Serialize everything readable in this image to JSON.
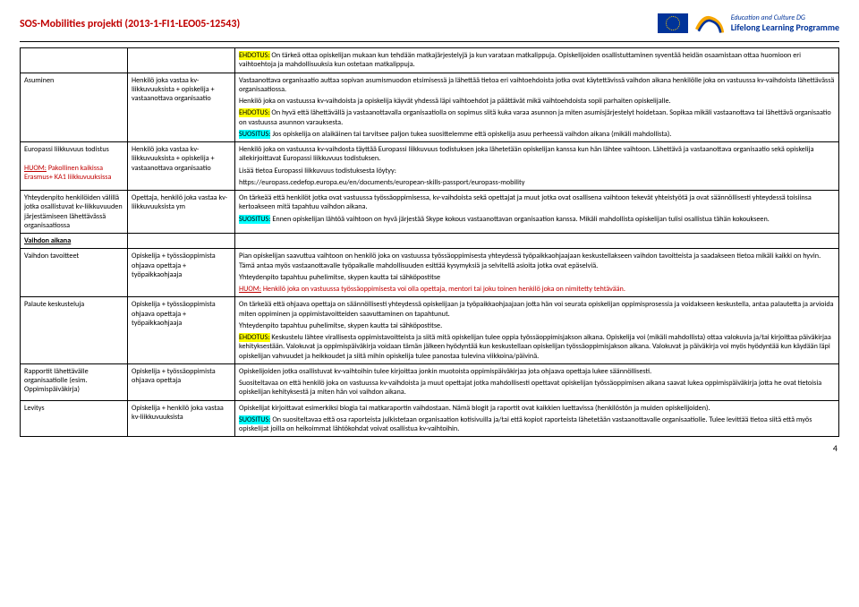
{
  "header": {
    "title": "SOS-Mobilities projekti (2013-1-FI1-LEO05-12543)",
    "programme_line1": "Education and Culture DG",
    "programme_line2": "Lifelong Learning Programme"
  },
  "footer": {
    "page": "4"
  },
  "rows": [
    {
      "col1": "",
      "col2": "",
      "col3": [
        {
          "t": "span",
          "cls": "hl-yellow",
          "text": "EHDOTUS:"
        },
        {
          "t": "text",
          "text": " On tärkeä ottaa opiskelijan mukaan kun tehdään matkajärjestelyjä ja kun varataan matkalippuja. Opiskelijoiden osallistuttaminen syventää heidän osaamistaan ottaa huomioon eri vaihtoehtoja ja mahdollisuuksia kun ostetaan matkalippuja."
        }
      ]
    },
    {
      "col1": "Asuminen",
      "col2": "Henkilö joka vastaa kv-liikkuvuuksista + opiskelija + vastaanottava organisaatio",
      "col3": [
        {
          "t": "p",
          "text": "Vastaanottava organisaatio auttaa sopivan asumismuodon etsimisessä ja lähettää tietoa eri vaihtoehdoista jotka ovat käytettävissä vaihdon aikana henkilölle joka on vastuussa kv-vaihdoista lähettävässä organisaatiossa."
        },
        {
          "t": "p",
          "text": "Henkilö joka on vastuussa kv-vaihdoista ja opiskelija käyvät yhdessä läpi vaihtoehdot ja päättävät mikä vaihtoehdoista sopii parhaiten opiskelijalle."
        },
        {
          "t": "p",
          "children": [
            {
              "t": "span",
              "cls": "hl-yellow",
              "text": "EHDOTUS:"
            },
            {
              "t": "text",
              "text": " On hyvä että lähettävällä ja vastaanottavalla organisaatiolla on sopimus siitä kuka varaa asunnon ja miten asumisjärjestelyt hoidetaan. Sopikaa mikäli vastaanottava tai lähettävä organisaatio on vastuussa asunnon varauksesta."
            }
          ]
        },
        {
          "t": "p",
          "children": [
            {
              "t": "span",
              "cls": "hl-cyan",
              "text": "SUOSITUS:"
            },
            {
              "t": "text",
              "text": " Jos opiskelija on alaikäinen tai tarvitsee paljon tukea suosittelemme että opiskelija asuu perheessä vaihdon aikana (mikäli mahdollista)."
            }
          ]
        }
      ]
    },
    {
      "col1_html": "Europassi liikkuvuus todistus<br><br><span class='red u'>HUOM:</span><span class='red'> Pakollinen kaikissa Erasmus+ KA1 liikkuvuuksissa</span>",
      "col2": "Henkilö joka vastaa kv-liikkuvuuksista + opiskelija + vastaanottava organisaatio",
      "col3": [
        {
          "t": "p",
          "text": "Henkilö joka on vastuussa kv-vaihdosta täyttää Europassi liikkuvuus todistuksen joka lähetetään opiskelijan kanssa kun hän lähtee vaihtoon. Lähettävä ja vastaanottava organisaatio sekä opiskelija allekirjoittavat Europassi liikkuvuus todistuksen."
        },
        {
          "t": "p",
          "text": "Lisää tietoa Europassi liikkuvuus todistuksesta löytyy:"
        },
        {
          "t": "p",
          "text": "https://europass.cedefop.europa.eu/en/documents/european-skills-passport/europass-mobility"
        }
      ]
    },
    {
      "col1": "Yhteydenpito henkilöiden välillä jotka osallistuvat kv-liikkuvuuden järjestämiseen lähettävässä organisaatiossa",
      "col2": "Opettaja, henkilö joka vastaa kv-liikkuvuuksista ym",
      "col3": [
        {
          "t": "p",
          "text": "On tärkeää että henkilöt jotka ovat vastuussa työssäoppimisessa, kv-vaihdoista sekä opettajat ja muut jotka ovat osallisena vaihtoon tekevät yhteistyötä ja ovat säännöllisesti yhteydessä toisiinsa kertoakseen mitä tapahtuu vaihdon aikana."
        },
        {
          "t": "p",
          "children": [
            {
              "t": "span",
              "cls": "hl-cyan",
              "text": "SUOSITUS:"
            },
            {
              "t": "text",
              "text": " Ennen opiskelijan lähtöä vaihtoon on hyvä järjestää Skype kokous vastaanottavan organisaation kanssa. Mikäli mahdollista opiskelijan tulisi osallistua tähän kokoukseen."
            }
          ]
        }
      ]
    },
    {
      "section": "Vaihdon aikana"
    },
    {
      "col1": "Vaihdon tavoitteet",
      "col2": "Opiskelija + työssäoppimista ohjaava opettaja + työpaikkaohjaaja",
      "col3": [
        {
          "t": "p",
          "text": "Pian opiskelijan saavuttua vaihtoon on henkilö joka on vastuussa työssäoppimisesta yhteydessä työpaikkaohjaajaan keskustellakseen vaihdon tavoitteista ja saadakseen tietoa mikäli kaikki on hyvin. Tämä antaa myös vastaanottavalle työpaikalle mahdollisuuden esittää kysymyksiä ja selvitellä asioita jotka ovat epäselviä."
        },
        {
          "t": "p",
          "text": "Yhteydenpito tapahtuu puhelimitse, skypen kautta tai sähköpostitse"
        },
        {
          "t": "p",
          "children": [
            {
              "t": "span",
              "cls": "red u",
              "text": "HUOM:"
            },
            {
              "t": "span",
              "cls": "red",
              "text": " Henkilö joka on vastuussa työssäoppimisesta voi olla opettaja, mentori tai joku toinen henkilö joka on nimitetty tehtävään."
            }
          ]
        }
      ]
    },
    {
      "col1": "Palaute keskusteluja",
      "col2": "Opiskelija + työssäoppimista ohjaava opettaja + työpaikkaohjaaja",
      "col3": [
        {
          "t": "p",
          "text": "On tärkeää että ohjaava opettaja on säännöllisesti yhteydessä opiskelijaan ja työpaikkaohjaajaan jotta hän voi seurata opiskelijan oppimisprosessia ja voidakseen keskustella, antaa palautetta ja arvioida miten oppiminen ja oppimistavoitteiden saavuttaminen on tapahtunut."
        },
        {
          "t": "p",
          "text": "Yhteydenpito tapahtuu puhelimitse, skypen kautta tai sähköpostitse."
        },
        {
          "t": "p",
          "children": [
            {
              "t": "span",
              "cls": "hl-yellow",
              "text": "EHDOTUS:"
            },
            {
              "t": "text",
              "text": " Keskustelu lähtee virallisesta oppimistavoitteista ja siitä mitä opiskelijan tulee oppia työssäoppimisjakson aikana. Opiskelija voi (mikäli mahdollista) ottaa valokuvia ja/tai kirjoittaa päiväkirjaa kehityksestään. Valokuvat ja oppimispäiväkirja voidaan tämän jälkeen hyödyntää kun keskustellaan opiskelijan työssäoppimisjakson aikana. Valokuvat ja päiväkirja voi myös hyödyntää kun käydään läpi opiskelijan vahvuudet ja heikkoudet ja siitä mihin opiskelija tulee panostaa tulevina viikkoina/päivinä."
            }
          ]
        }
      ]
    },
    {
      "col1": "Rapportit lähettävälle organisaatiolle (esim. Oppimispäiväkirja)",
      "col2": "Opiskelija + työssäoppimista ohjaava opettaja",
      "col3": [
        {
          "t": "p",
          "text": "Opiskelijoiden jotka osallistuvat kv-vaihtoihin tulee kirjoittaa jonkin muotoista oppimispäiväkirjaa jota ohjaava opettaja lukee säännöllisesti."
        },
        {
          "t": "p",
          "text": "Suositeltavaa on että henkilö joka on vastuussa kv-vaihdoista ja muut opettajat jotka mahdollisesti opettavat opiskelijan työssäoppimisen aikana saavat lukea oppimispäiväkirja jotta he ovat tietoisia opiskelijan kehityksestä ja miten hän voi vaihdon aikana."
        }
      ]
    },
    {
      "col1": "Levitys",
      "col2": "Opiskelija + henkilö joka vastaa kv-liikkuvuuksista",
      "col3": [
        {
          "t": "p",
          "text": "Opiskelijat kirjoittavat esimerkiksi blogia tai matkaraportin vaihdostaan. Nämä blogit ja raportit ovat kaikkien luettavissa (henkilöstön ja muiden opiskelijoiden)."
        },
        {
          "t": "p",
          "children": [
            {
              "t": "span",
              "cls": "hl-cyan",
              "text": "SUOSITUS:"
            },
            {
              "t": "text",
              "text": " On suositeltavaa että osa raporteista julkistetaan organisaation kotisivuilla ja/tai että kopiot raporteista lähetetään vastaanottavalle organisaatiolle. Tulee levittää tietoa siitä että myös opiskelijat joilla on heikoimmat lähtökohdat voivat osallistua kv-vaihtoihin."
            }
          ]
        }
      ]
    }
  ]
}
